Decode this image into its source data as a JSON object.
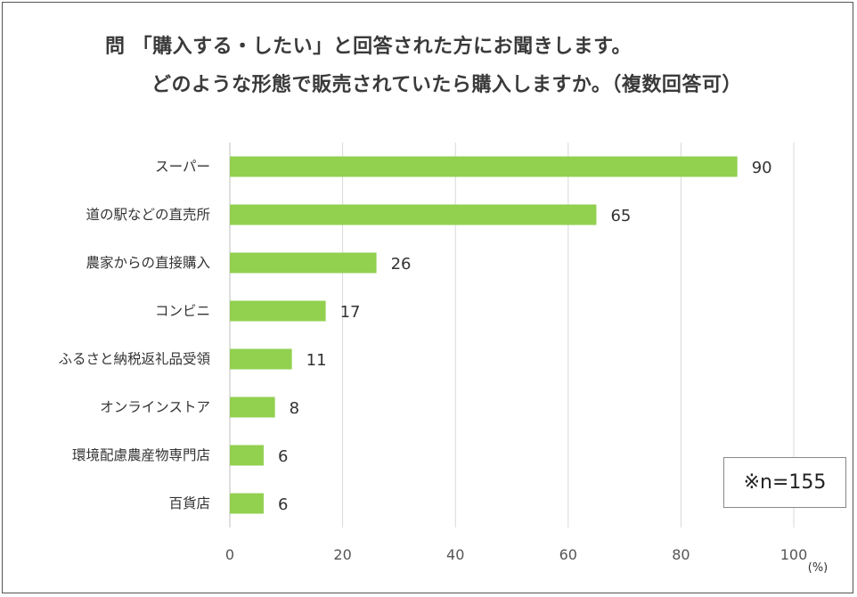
{
  "title_line1": "問 「購入する・したい」と回答された方にお聞きします。",
  "title_line2": "どのような形態で販売されていたら購入しますか。（複数回答可）",
  "note": "※n=155",
  "chart_data": {
    "type": "bar",
    "orientation": "horizontal",
    "categories": [
      "スーパー",
      "道の駅などの直売所",
      "農家からの直接購入",
      "コンビニ",
      "ふるさと納税返礼品受領",
      "オンラインストア",
      "環境配慮農産物専門店",
      "百貨店"
    ],
    "values": [
      90,
      65,
      26,
      17,
      11,
      8,
      6,
      6
    ],
    "xlim": [
      0,
      100
    ],
    "xticks": [
      0,
      20,
      40,
      60,
      80,
      100
    ],
    "xlabel": "(%)",
    "grid": true,
    "bar_color": "#92d050",
    "grid_color": "#d9d9d9",
    "axis_color": "#bfbfbf"
  }
}
